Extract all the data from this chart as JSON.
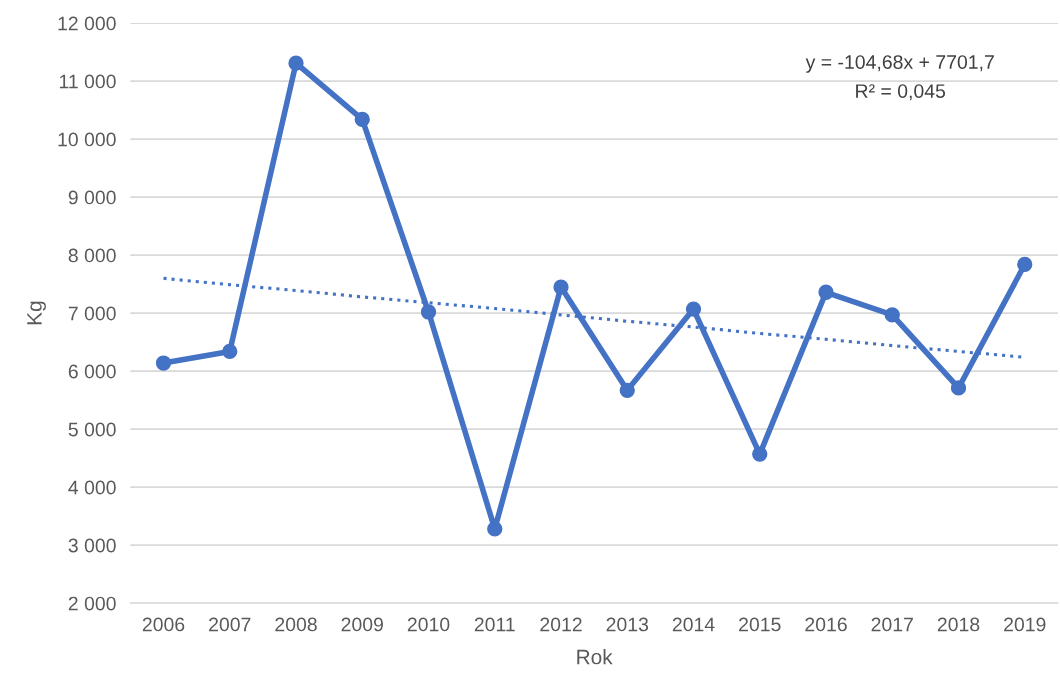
{
  "chart_data": {
    "type": "line",
    "xlabel": "Rok",
    "ylabel": "Kg",
    "categories": [
      "2006",
      "2007",
      "2008",
      "2009",
      "2010",
      "2011",
      "2012",
      "2013",
      "2014",
      "2015",
      "2016",
      "2017",
      "2018",
      "2019"
    ],
    "series": [
      {
        "color": "#4472c4",
        "marker": "circle",
        "line_style": "solid",
        "values": [
          6140,
          6340,
          11310,
          10340,
          7020,
          3280,
          7450,
          5670,
          7070,
          4570,
          7360,
          6970,
          5710,
          7840
        ]
      },
      {
        "color": "#4472c4",
        "marker": "none",
        "line_style": "dotted",
        "values": [
          7600,
          7490,
          7390,
          7280,
          7180,
          7080,
          6970,
          6860,
          6760,
          6650,
          6550,
          6440,
          6340,
          6240
        ]
      }
    ],
    "ylim": [
      2000,
      12000
    ],
    "yticks": [
      {
        "value": 2000,
        "label": "2 000"
      },
      {
        "value": 3000,
        "label": "3 000"
      },
      {
        "value": 4000,
        "label": "4 000"
      },
      {
        "value": 5000,
        "label": "5 000"
      },
      {
        "value": 6000,
        "label": "6 000"
      },
      {
        "value": 7000,
        "label": "7 000"
      },
      {
        "value": 8000,
        "label": "8 000"
      },
      {
        "value": 9000,
        "label": "9 000"
      },
      {
        "value": 10000,
        "label": "10 000"
      },
      {
        "value": 11000,
        "label": "11 000"
      },
      {
        "value": 12000,
        "label": "12 000"
      }
    ],
    "grid": "y",
    "legend": false,
    "annotations": [
      "y = -104,68x + 7701,7",
      "R² = 0,045"
    ]
  }
}
